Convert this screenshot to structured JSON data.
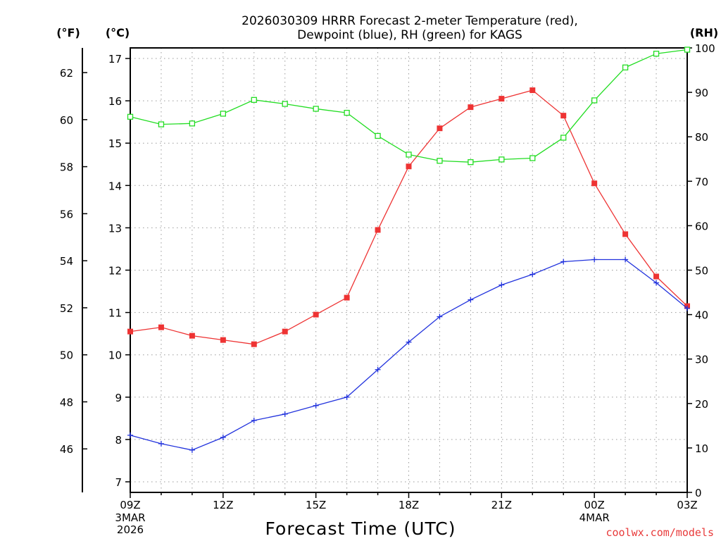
{
  "chart_data": {
    "type": "line",
    "title_line1": "2026030309 HRRR Forecast 2-meter Temperature (red),",
    "title_line2": "Dewpoint (blue), RH (green) for KAGS",
    "xlabel": "Forecast Time (UTC)",
    "credit": "coolwx.com/models",
    "unit_left_outer": "(°F)",
    "unit_left_inner": "(°C)",
    "unit_right": "(RH)",
    "x_ticks": [
      "09Z",
      "12Z",
      "15Z",
      "18Z",
      "21Z",
      "00Z",
      "03Z"
    ],
    "x_tick_hours": [
      0,
      3,
      6,
      9,
      12,
      15,
      18
    ],
    "x_sublabels": [
      {
        "hour": 0,
        "lines": [
          "3MAR",
          "2026"
        ]
      },
      {
        "hour": 15,
        "lines": [
          "4MAR"
        ]
      }
    ],
    "x_range": [
      0,
      18
    ],
    "celsius_range": [
      6.75,
      17.25
    ],
    "celsius_ticks": [
      "7",
      "8",
      "9",
      "10",
      "11",
      "12",
      "13",
      "14",
      "15",
      "16",
      "17"
    ],
    "fahrenheit_ticks": [
      "46",
      "48",
      "50",
      "52",
      "54",
      "56",
      "58",
      "60",
      "62"
    ],
    "rh_range": [
      0,
      100
    ],
    "rh_ticks": [
      "0",
      "10",
      "20",
      "30",
      "40",
      "50",
      "60",
      "70",
      "80",
      "90",
      "100"
    ],
    "series": [
      {
        "name": "2-meter Temperature",
        "unit": "C",
        "color": "#ee3333",
        "marker": "filled-square",
        "x": [
          0,
          1,
          2,
          3,
          4,
          5,
          6,
          7,
          8,
          9,
          10,
          11,
          12,
          13,
          14,
          15,
          16,
          17,
          18
        ],
        "values": [
          10.55,
          10.65,
          10.45,
          10.35,
          10.25,
          10.55,
          10.95,
          11.35,
          12.95,
          14.45,
          15.35,
          15.85,
          16.05,
          16.25,
          15.65,
          14.05,
          12.85,
          11.85,
          11.15
        ]
      },
      {
        "name": "Dewpoint",
        "unit": "C",
        "color": "#2233dd",
        "marker": "plus",
        "x": [
          0,
          1,
          2,
          3,
          4,
          5,
          6,
          7,
          8,
          9,
          10,
          11,
          12,
          13,
          14,
          15,
          16,
          17,
          18
        ],
        "values": [
          8.1,
          7.9,
          7.75,
          8.05,
          8.45,
          8.6,
          8.8,
          9.0,
          9.65,
          10.3,
          10.9,
          11.3,
          11.65,
          11.9,
          12.2,
          12.25,
          12.25,
          11.7,
          11.1
        ]
      },
      {
        "name": "RH",
        "unit": "%",
        "color": "#22dd22",
        "marker": "open-square",
        "x": [
          0,
          1,
          2,
          3,
          4,
          5,
          6,
          7,
          8,
          9,
          10,
          11,
          12,
          13,
          14,
          15,
          16,
          17,
          18
        ],
        "values": [
          84.5,
          82.8,
          83.0,
          85.2,
          88.3,
          87.4,
          86.3,
          85.4,
          80.2,
          76.0,
          74.6,
          74.3,
          74.9,
          75.2,
          79.8,
          88.2,
          95.6,
          98.7,
          99.6
        ]
      }
    ],
    "grid": true
  }
}
